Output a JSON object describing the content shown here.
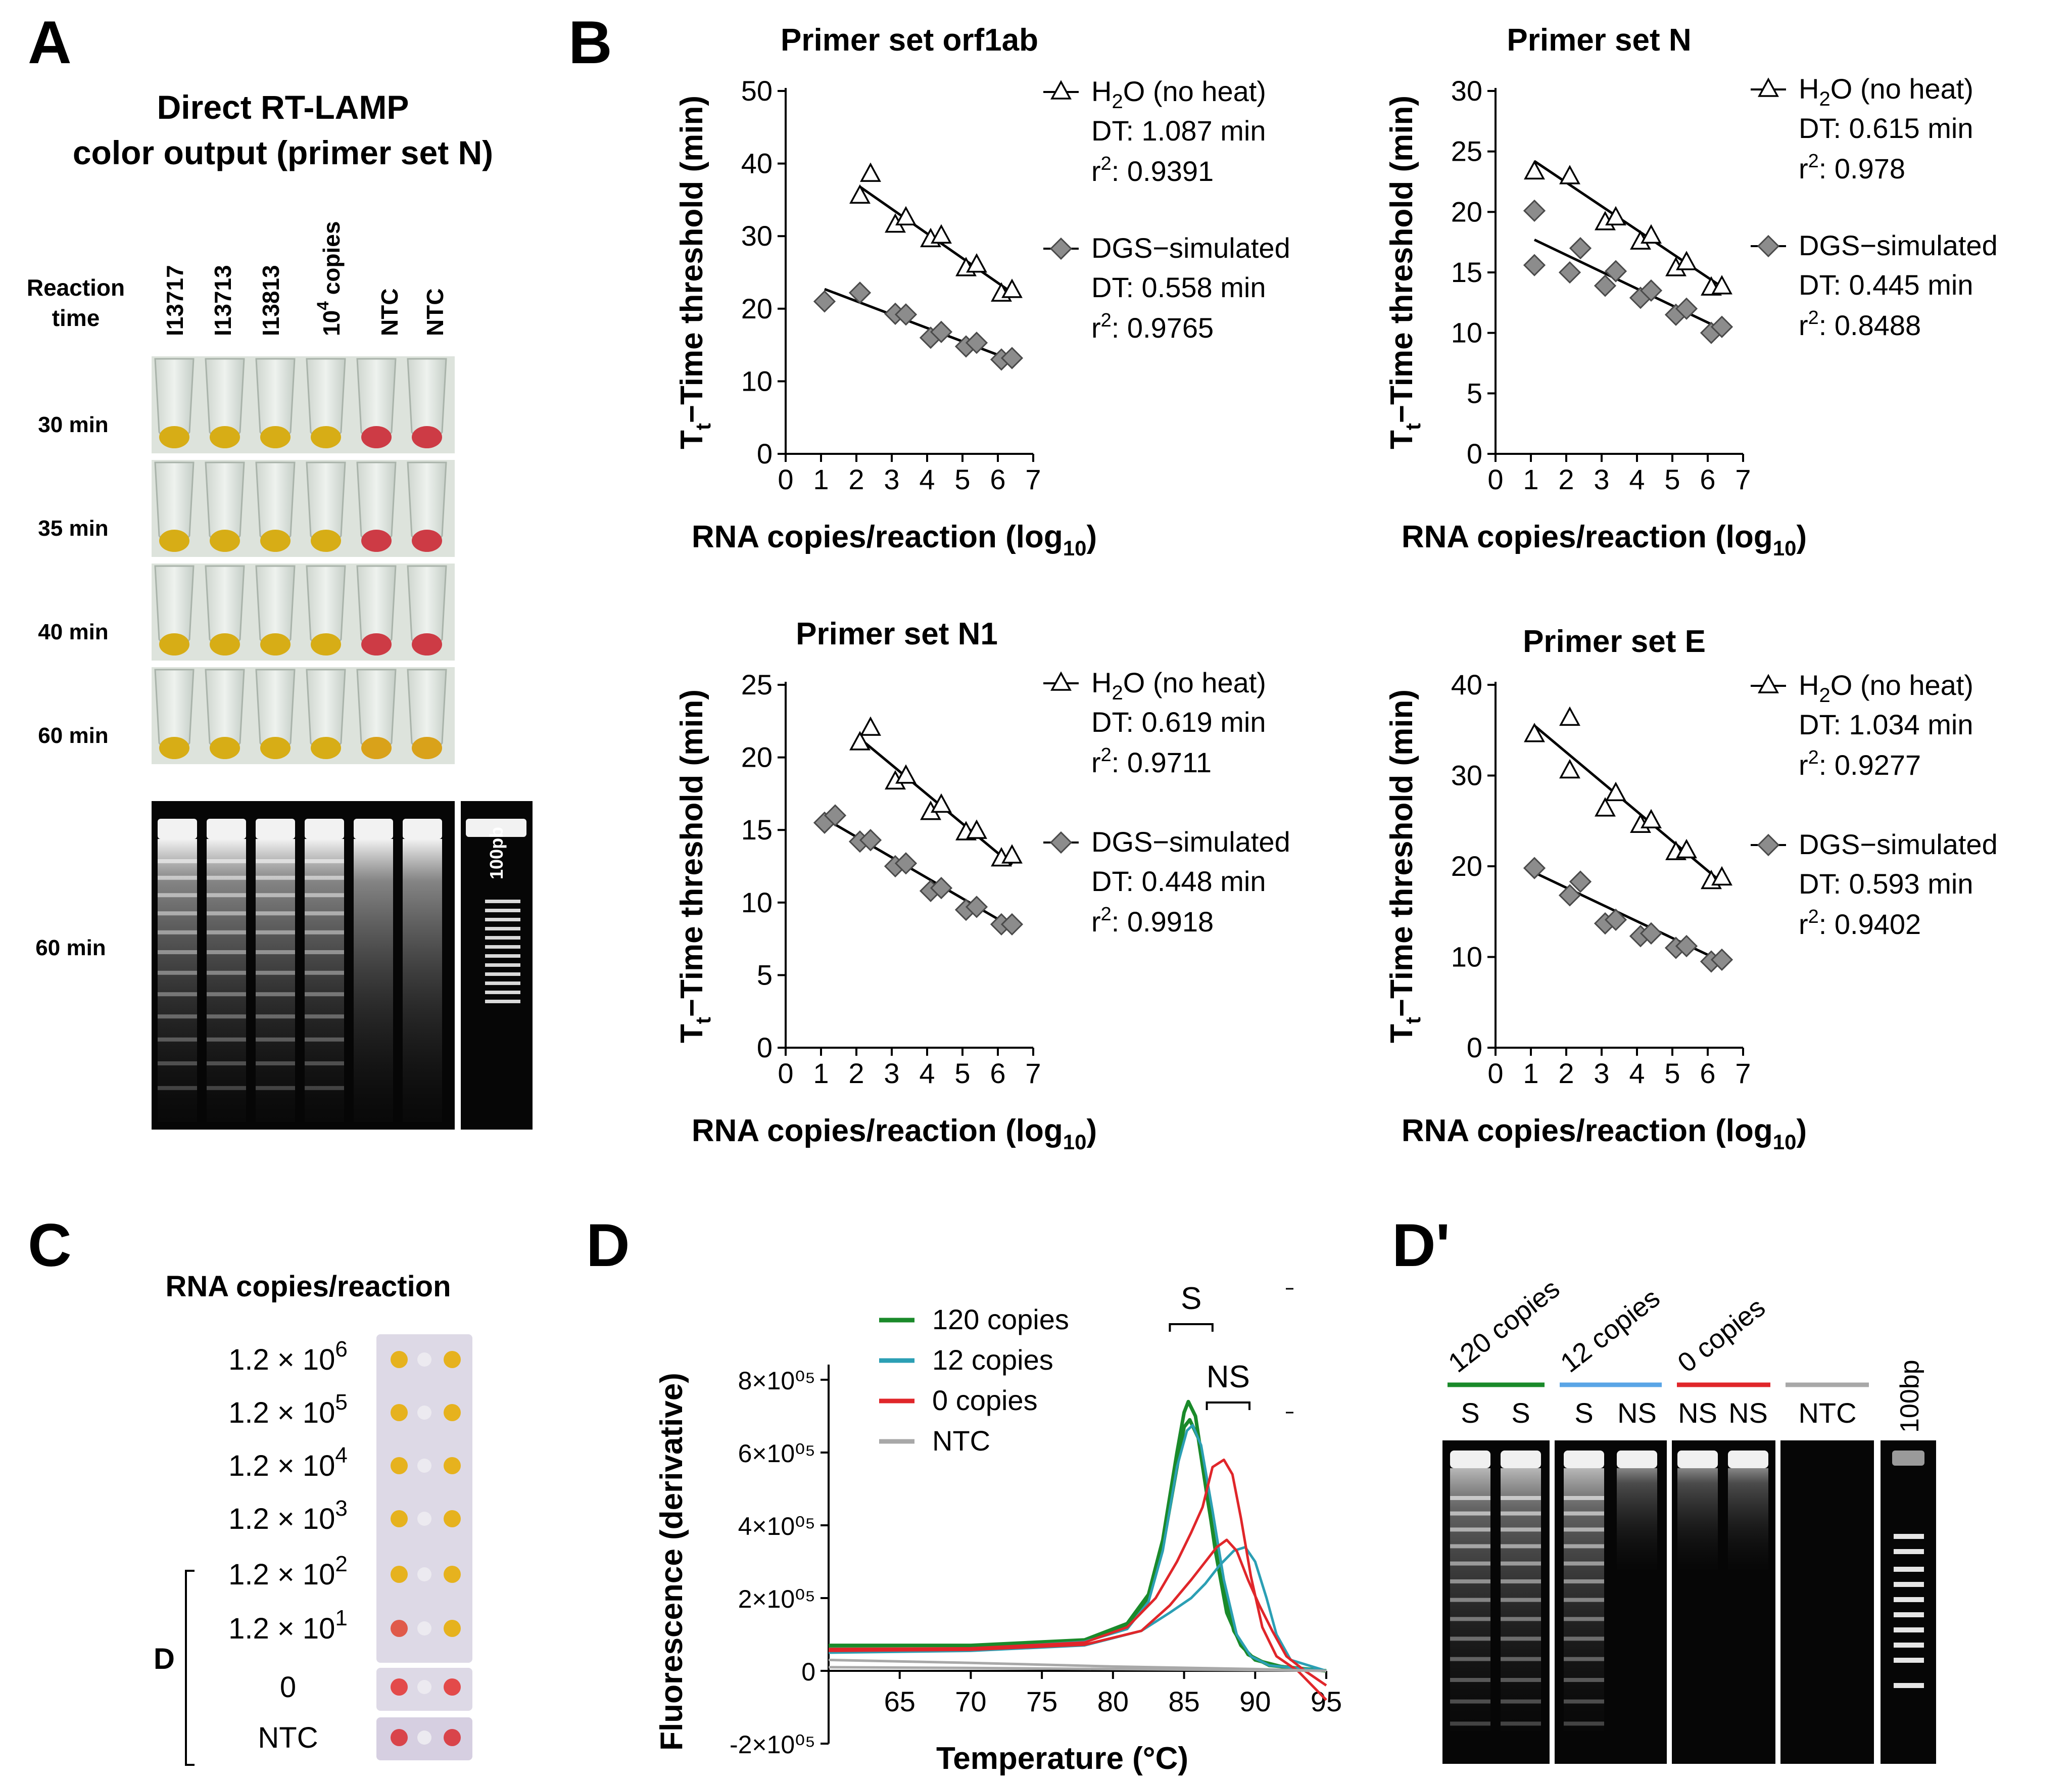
{
  "panel_labels": {
    "a": "A",
    "b": "B",
    "c": "C",
    "d": "D",
    "dprime": "D'"
  },
  "panelA": {
    "title_line1": "Direct  RT-LAMP",
    "title_line2": "color output (primer set N)",
    "reaction_time_line1": "Reaction",
    "reaction_time_line2": "time",
    "lanes": [
      "I13717",
      "I13713",
      "I13813",
      "NTC",
      "NTC"
    ],
    "lane_copies": {
      "base": "10",
      "exp": "4",
      "rest": " copies"
    },
    "rows": [
      "30 min",
      "35 min",
      "40 min",
      "60 min"
    ],
    "tube_colors": [
      "#d7ad16",
      "#d7ad16",
      "#d7ad16",
      "#d7ad16",
      "#cd3b45",
      "#cd3b45"
    ],
    "tube_colors_60": [
      "#d7ad16",
      "#d7ad16",
      "#d7ad16",
      "#d7ad16",
      "#d9a21a",
      "#d9a21a"
    ],
    "gel_label": "60 min",
    "ladder_label": "100pb"
  },
  "chart_data": [
    {
      "type": "scatter",
      "title": "Primer set orf1ab",
      "ylabel": "T t −Time threshold (min)",
      "xlabel": "RNA copies/reaction (log10)",
      "xlim": [
        0,
        7
      ],
      "ylim": [
        0,
        50
      ],
      "xticks": [
        "0",
        "1",
        "2",
        "3",
        "4",
        "5",
        "6",
        "7"
      ],
      "yticks": [
        "0",
        "10",
        "20",
        "30",
        "40",
        "50"
      ],
      "series": [
        {
          "name": "H2O (no heat)",
          "marker": "triangle",
          "x": [
            2.1,
            2.4,
            3.1,
            3.4,
            4.1,
            4.4,
            5.1,
            5.4,
            6.1,
            6.4
          ],
          "y": [
            35.5,
            38.5,
            31.5,
            32.5,
            29.5,
            30,
            25.5,
            26,
            22,
            22.5
          ],
          "fit": [
            [
              2.1,
              36.8
            ],
            [
              6.4,
              22.2
            ]
          ],
          "dt": "DT: 1.087 min",
          "r2": ": 0.9391"
        },
        {
          "name": "DGS−simulated",
          "marker": "diamond",
          "x": [
            1.1,
            2.1,
            3.1,
            3.4,
            4.1,
            4.4,
            5.1,
            5.4,
            6.1,
            6.4
          ],
          "y": [
            21,
            22.2,
            19.3,
            19.2,
            16,
            16.8,
            14.8,
            15.3,
            13,
            13.2
          ],
          "fit": [
            [
              1.1,
              22.7
            ],
            [
              6.4,
              12.9
            ]
          ],
          "dt": "DT: 0.558 min",
          "r2": ": 0.9765"
        }
      ]
    },
    {
      "type": "scatter",
      "title": "Primer set N",
      "ylabel": "T t −Time threshold (min)",
      "xlabel": "RNA copies/reaction (log10)",
      "xlim": [
        0,
        7
      ],
      "ylim": [
        0,
        30
      ],
      "xticks": [
        "0",
        "1",
        "2",
        "3",
        "4",
        "5",
        "6",
        "7"
      ],
      "yticks": [
        "0",
        "5",
        "10",
        "15",
        "20",
        "25",
        "30"
      ],
      "series": [
        {
          "name": "H2O (no heat)",
          "marker": "triangle",
          "x": [
            1.1,
            2.1,
            3.1,
            3.4,
            4.1,
            4.4,
            5.1,
            5.4,
            6.1,
            6.4
          ],
          "y": [
            23.3,
            22.9,
            19.1,
            19.5,
            17.5,
            18,
            15.3,
            15.8,
            13.7,
            13.8
          ],
          "fit": [
            [
              1.1,
              24.2
            ],
            [
              6.4,
              13.8
            ]
          ],
          "dt": "DT: 0.615 min",
          "r2": ": 0.978"
        },
        {
          "name": "DGS−simulated",
          "marker": "diamond",
          "x": [
            1.1,
            1.1,
            2.1,
            2.4,
            3.1,
            3.4,
            4.1,
            4.4,
            5.1,
            5.4,
            6.1,
            6.4
          ],
          "y": [
            20.1,
            15.6,
            15,
            17,
            13.9,
            15.1,
            12.9,
            13.5,
            11.5,
            12,
            10,
            10.5
          ],
          "fit": [
            [
              1.1,
              17.7
            ],
            [
              6.4,
              10.3
            ]
          ],
          "dt": "DT: 0.445 min",
          "r2": ": 0.8488"
        }
      ]
    },
    {
      "type": "scatter",
      "title": "Primer set N1",
      "ylabel": "T t −Time threshold (min)",
      "xlabel": "RNA copies/reaction (log10)",
      "xlim": [
        0,
        7
      ],
      "ylim": [
        0,
        25
      ],
      "xticks": [
        "0",
        "1",
        "2",
        "3",
        "4",
        "5",
        "6",
        "7"
      ],
      "yticks": [
        "0",
        "5",
        "10",
        "15",
        "20",
        "25"
      ],
      "series": [
        {
          "name": "H2O (no heat)",
          "marker": "triangle",
          "x": [
            2.1,
            2.4,
            3.1,
            3.4,
            4.1,
            4.4,
            5.1,
            5.4,
            6.1,
            6.4
          ],
          "y": [
            21,
            22,
            18.3,
            18.7,
            16.2,
            16.7,
            14.8,
            14.9,
            13,
            13.2
          ],
          "fit": [
            [
              2.1,
              21.3
            ],
            [
              6.4,
              12.6
            ]
          ],
          "dt": "DT: 0.619 min",
          "r2": ": 0.9711"
        },
        {
          "name": "DGS−simulated",
          "marker": "diamond",
          "x": [
            1.1,
            1.4,
            2.1,
            2.4,
            3.1,
            3.4,
            4.1,
            4.4,
            5.1,
            5.4,
            6.1,
            6.4
          ],
          "y": [
            15.5,
            16,
            14.2,
            14.3,
            12.5,
            12.7,
            10.8,
            11,
            9.5,
            9.7,
            8.5,
            8.5
          ],
          "fit": [
            [
              1.1,
              15.8
            ],
            [
              6.4,
              8.3
            ]
          ],
          "dt": "DT: 0.448 min",
          "r2": ": 0.9918"
        }
      ]
    },
    {
      "type": "scatter",
      "title": "Primer set E",
      "ylabel": "T t −Time threshold (min)",
      "xlabel": "RNA copies/reaction (log10)",
      "xlim": [
        0,
        7
      ],
      "ylim": [
        0,
        40
      ],
      "xticks": [
        "0",
        "1",
        "2",
        "3",
        "4",
        "5",
        "6",
        "7"
      ],
      "yticks": [
        "0",
        "10",
        "20",
        "30",
        "40"
      ],
      "series": [
        {
          "name": "H2O (no heat)",
          "marker": "triangle",
          "x": [
            1.1,
            2.1,
            2.1,
            3.1,
            3.4,
            4.1,
            4.4,
            5.1,
            5.4,
            6.1,
            6.4
          ],
          "y": [
            34.5,
            36.3,
            30.5,
            26.3,
            28,
            24.5,
            25,
            21.5,
            21.7,
            18.3,
            18.7
          ],
          "fit": [
            [
              1.1,
              35.5
            ],
            [
              6.4,
              18.2
            ]
          ],
          "dt": "DT: 1.034 min",
          "r2": ": 0.9277"
        },
        {
          "name": "DGS−simulated",
          "marker": "diamond",
          "x": [
            1.1,
            2.1,
            2.4,
            3.1,
            3.4,
            4.1,
            4.4,
            5.1,
            5.4,
            6.1,
            6.4
          ],
          "y": [
            19.8,
            16.8,
            18.3,
            13.7,
            14.1,
            12.3,
            12.6,
            11,
            11.2,
            9.5,
            9.7
          ],
          "fit": [
            [
              1.1,
              19.3
            ],
            [
              6.4,
              9.5
            ]
          ],
          "dt": "DT: 0.593 min",
          "r2": ": 0.9402"
        }
      ]
    },
    {
      "type": "line",
      "title": "",
      "xlabel": "Temperature  (°C)",
      "ylabel": "Fluorescence  (derivative)",
      "xlim": [
        60,
        95
      ],
      "ylim": [
        -200000,
        800000
      ],
      "xticks": [
        "65",
        "70",
        "75",
        "80",
        "85",
        "90",
        "95"
      ],
      "yticks": [
        "-2×10⁰⁵",
        "0",
        "2×10⁰⁵",
        "4×10⁰⁵",
        "6×10⁰⁵",
        "8×10⁰⁵"
      ],
      "annotations": [
        "S",
        "NS"
      ],
      "series": [
        {
          "name": "120 copies",
          "color": "#1a8a2a",
          "curves": [
            {
              "x": [
                60,
                70,
                78,
                81,
                82.5,
                83.5,
                84.5,
                85,
                85.3,
                85.8,
                86.5,
                87.2,
                88,
                89,
                90,
                92,
                95
              ],
              "y": [
                70000,
                70000,
                85000,
                130000,
                210000,
                360000,
                600000,
                710000,
                740000,
                700000,
                520000,
                330000,
                160000,
                70000,
                30000,
                10000,
                0
              ]
            },
            {
              "x": [
                60,
                70,
                78,
                81,
                82.5,
                83.5,
                84.5,
                85,
                85.4,
                86,
                86.7,
                87.5,
                88.5,
                89.5,
                91,
                95
              ],
              "y": [
                60000,
                60000,
                80000,
                120000,
                200000,
                340000,
                560000,
                670000,
                690000,
                640000,
                460000,
                270000,
                110000,
                45000,
                15000,
                0
              ]
            }
          ]
        },
        {
          "name": "12 copies",
          "color": "#2b9fb4",
          "curves": [
            {
              "x": [
                60,
                70,
                78,
                81,
                82.5,
                83.5,
                84.5,
                85.2,
                85.6,
                86.2,
                87,
                87.8,
                88.7,
                89.7,
                91,
                95
              ],
              "y": [
                60000,
                60000,
                80000,
                115000,
                190000,
                330000,
                560000,
                660000,
                675000,
                620000,
                440000,
                250000,
                100000,
                40000,
                15000,
                0
              ]
            },
            {
              "x": [
                60,
                70,
                78,
                82,
                84,
                85.5,
                86.5,
                87.5,
                88.5,
                89.3,
                90,
                90.8,
                91.5,
                92.5,
                95
              ],
              "y": [
                50000,
                55000,
                70000,
                110000,
                160000,
                200000,
                240000,
                290000,
                330000,
                340000,
                300000,
                200000,
                100000,
                30000,
                0
              ]
            }
          ]
        },
        {
          "name": "0 copies",
          "color": "#e0262a",
          "curves": [
            {
              "x": [
                60,
                70,
                78,
                81,
                83,
                84.5,
                85.5,
                86.3,
                87,
                87.8,
                88.4,
                89,
                89.7,
                90.5,
                91.5,
                93,
                95
              ],
              "y": [
                60000,
                62000,
                78000,
                120000,
                200000,
                300000,
                380000,
                450000,
                560000,
                580000,
                540000,
                420000,
                260000,
                120000,
                40000,
                0,
                -80000
              ]
            },
            {
              "x": [
                60,
                70,
                78,
                82,
                84,
                85.5,
                86.5,
                87.3,
                88,
                88.7,
                89.5,
                90.3,
                91.2,
                92.2,
                93.5,
                95
              ],
              "y": [
                55000,
                58000,
                72000,
                110000,
                180000,
                250000,
                300000,
                340000,
                360000,
                330000,
                250000,
                180000,
                110000,
                40000,
                0,
                -40000
              ]
            }
          ]
        },
        {
          "name": "NTC",
          "color": "#a8a8a8",
          "curves": [
            {
              "x": [
                60,
                70,
                80,
                90,
                95
              ],
              "y": [
                30000,
                22000,
                12000,
                5000,
                0
              ]
            },
            {
              "x": [
                60,
                70,
                80,
                90,
                95
              ],
              "y": [
                10000,
                8000,
                5000,
                2000,
                0
              ]
            }
          ]
        }
      ]
    }
  ],
  "panelC": {
    "title": "RNA copies/reaction",
    "rows": [
      {
        "base": "1.2 × 10",
        "exp": "6"
      },
      {
        "base": "1.2 × 10",
        "exp": "5"
      },
      {
        "base": "1.2 × 10",
        "exp": "4"
      },
      {
        "base": "1.2 × 10",
        "exp": "3"
      },
      {
        "base": "1.2 × 10",
        "exp": "2"
      },
      {
        "base": "1.2 × 10",
        "exp": "1"
      },
      {
        "base": "0",
        "exp": ""
      },
      {
        "base": "NTC",
        "exp": ""
      }
    ],
    "bracket_label": "D",
    "spot_colors": [
      [
        "#e6b21e",
        "#e6b21e"
      ],
      [
        "#e6b21e",
        "#e6b21e"
      ],
      [
        "#e6b21e",
        "#e6b21e"
      ],
      [
        "#e6b21e",
        "#e6b21e"
      ],
      [
        "#e6b21e",
        "#e6b21e"
      ],
      [
        "#e05a4a",
        "#e6b21e"
      ],
      [
        "#e34a4a",
        "#e34a4a"
      ],
      [
        "#d9444a",
        "#d9444a"
      ]
    ]
  },
  "panelDprime": {
    "groups": [
      {
        "name": "120 copies",
        "color": "#1a8a2a",
        "lanes": [
          "S",
          "S"
        ]
      },
      {
        "name": "12 copies",
        "color": "#5aa5e6",
        "lanes": [
          "S",
          "NS"
        ]
      },
      {
        "name": "0 copies",
        "color": "#e0262a",
        "lanes": [
          "NS",
          "NS"
        ]
      },
      {
        "name": "NTC",
        "color": "#a8a8a8",
        "lanes": [
          "NTC"
        ]
      }
    ],
    "ladder_label": "100bp"
  }
}
